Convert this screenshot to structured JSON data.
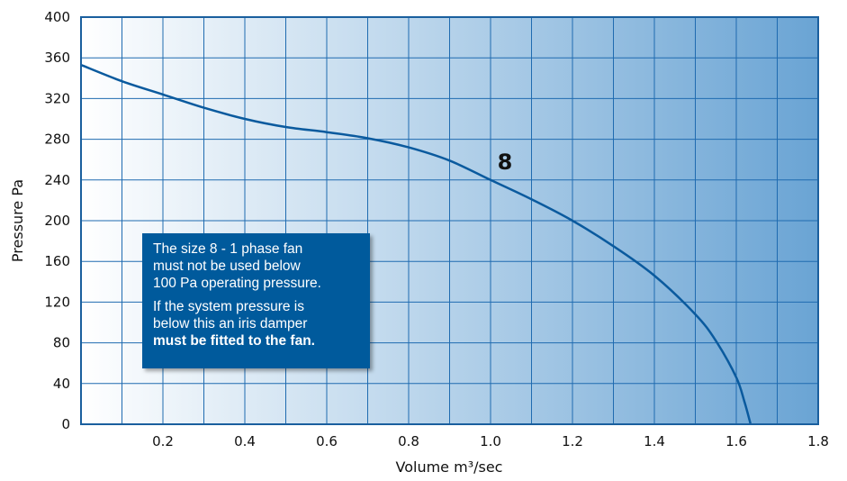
{
  "chart_data": {
    "type": "line",
    "title": "",
    "xlabel": "Volume m³/sec",
    "ylabel": "Pressure Pa",
    "xlim": [
      0,
      1.8
    ],
    "ylim": [
      0,
      400
    ],
    "x_ticks": [
      "0.2",
      "0.4",
      "0.6",
      "0.8",
      "1.0",
      "1.2",
      "1.4",
      "1.6",
      "1.8"
    ],
    "y_ticks": [
      "0",
      "40",
      "80",
      "120",
      "160",
      "200",
      "240",
      "280",
      "320",
      "360",
      "400"
    ],
    "grid": true,
    "series": [
      {
        "name": "8",
        "points": [
          [
            0,
            353
          ],
          [
            0.1,
            337
          ],
          [
            0.2,
            324
          ],
          [
            0.3,
            311
          ],
          [
            0.4,
            300
          ],
          [
            0.5,
            292
          ],
          [
            0.6,
            287
          ],
          [
            0.7,
            281
          ],
          [
            0.8,
            272
          ],
          [
            0.9,
            259
          ],
          [
            1.0,
            240
          ],
          [
            1.1,
            221
          ],
          [
            1.2,
            200
          ],
          [
            1.3,
            175
          ],
          [
            1.4,
            146
          ],
          [
            1.5,
            108
          ],
          [
            1.55,
            82
          ],
          [
            1.6,
            46
          ],
          [
            1.62,
            22
          ],
          [
            1.635,
            0
          ]
        ]
      }
    ],
    "curve_label": "8",
    "note": {
      "line1": "The size 8 - 1 phase fan",
      "line2": "must not be used below",
      "line3": "100 Pa operating pressure.",
      "line4": "If the system pressure is",
      "line5": "below this an iris damper",
      "line6": "must be fitted to the fan."
    },
    "colors": {
      "curve": "#0a5a9e",
      "frame": "#1a5f9e",
      "grid": "#1f6bb0",
      "gradient_start": "#ffffff",
      "gradient_end": "#6aa4d4",
      "note_bg": "#005a9c"
    }
  }
}
